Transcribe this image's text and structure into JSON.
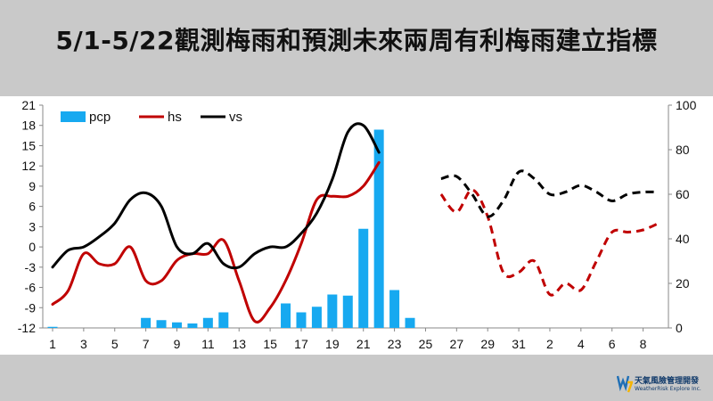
{
  "title": "5/1-5/22觀測梅雨和預測未來兩周有利梅雨建立指標",
  "logo": {
    "name_cn": "天氣風險管理開發",
    "name_en": "WeatherRisk Explore Inc."
  },
  "colors": {
    "pcp": "#17a9f0",
    "hs": "#c00000",
    "vs": "#000000",
    "title_bg": "#c9c9c9"
  },
  "chart_data": {
    "type": "bar+line",
    "left_axis": {
      "ylim": [
        -12,
        21
      ],
      "ticks": [
        -12,
        -9,
        -6,
        -3,
        0,
        3,
        6,
        9,
        12,
        15,
        18,
        21
      ]
    },
    "right_axis": {
      "ylim": [
        0,
        100
      ],
      "ticks": [
        0,
        20,
        40,
        60,
        80,
        100
      ]
    },
    "x_ticks": [
      "1",
      "3",
      "5",
      "7",
      "9",
      "11",
      "13",
      "15",
      "17",
      "19",
      "21",
      "23",
      "25",
      "27",
      "29",
      "31",
      "2",
      "4",
      "6",
      "8"
    ],
    "legend": [
      "pcp",
      "hs",
      "vs"
    ],
    "legend_position": "top-left",
    "series": [
      {
        "name": "pcp",
        "kind": "bar",
        "axis": "right",
        "x": [
          1,
          2,
          3,
          4,
          5,
          6,
          7,
          8,
          9,
          10,
          11,
          12,
          13,
          14,
          15,
          16,
          17,
          18,
          19,
          20,
          21,
          22,
          23,
          24
        ],
        "values": [
          0.5,
          0,
          0,
          0,
          0,
          0,
          4.5,
          3.5,
          2.5,
          2,
          4.5,
          7,
          0,
          0,
          0,
          11,
          7,
          9.5,
          15,
          14.5,
          44.5,
          89,
          17,
          4.5
        ]
      },
      {
        "name": "hs",
        "kind": "line",
        "axis": "left",
        "style": "solid",
        "x": [
          1,
          2,
          3,
          4,
          5,
          6,
          7,
          8,
          9,
          10,
          11,
          12,
          13,
          14,
          15,
          16,
          17,
          18,
          19,
          20,
          21,
          22
        ],
        "values": [
          -8.5,
          -6.5,
          -1,
          -2.5,
          -2.5,
          0,
          -5,
          -5,
          -2,
          -1,
          -1,
          1,
          -5,
          -11,
          -9,
          -5,
          0.5,
          7,
          7.5,
          7.5,
          9,
          12.5
        ]
      },
      {
        "name": "hs",
        "kind": "line",
        "axis": "right",
        "style": "dashed",
        "x": [
          26,
          27,
          28,
          29,
          30,
          31,
          32,
          33,
          34,
          35,
          36,
          37,
          38,
          39,
          40
        ],
        "values": [
          60,
          52,
          62,
          50,
          25,
          25,
          30,
          15,
          20,
          17,
          30,
          43,
          43,
          44,
          47
        ]
      },
      {
        "name": "vs",
        "kind": "line",
        "axis": "left",
        "style": "solid",
        "x": [
          1,
          2,
          3,
          4,
          5,
          6,
          7,
          8,
          9,
          10,
          11,
          12,
          13,
          14,
          15,
          16,
          17,
          18,
          19,
          20,
          21,
          22
        ],
        "values": [
          -3,
          -0.5,
          0,
          1.5,
          3.5,
          7,
          8,
          6,
          0,
          -1,
          0.5,
          -2.5,
          -3,
          -1,
          0,
          0,
          2,
          5,
          10,
          17,
          18,
          14
        ]
      },
      {
        "name": "vs",
        "kind": "line",
        "axis": "right",
        "style": "dashed",
        "x": [
          26,
          27,
          28,
          29,
          30,
          31,
          32,
          33,
          34,
          35,
          36,
          37,
          38,
          39,
          40
        ],
        "values": [
          67,
          68,
          60,
          50,
          57,
          70,
          67,
          60,
          61,
          64,
          61,
          57,
          60,
          61,
          61
        ]
      }
    ]
  }
}
